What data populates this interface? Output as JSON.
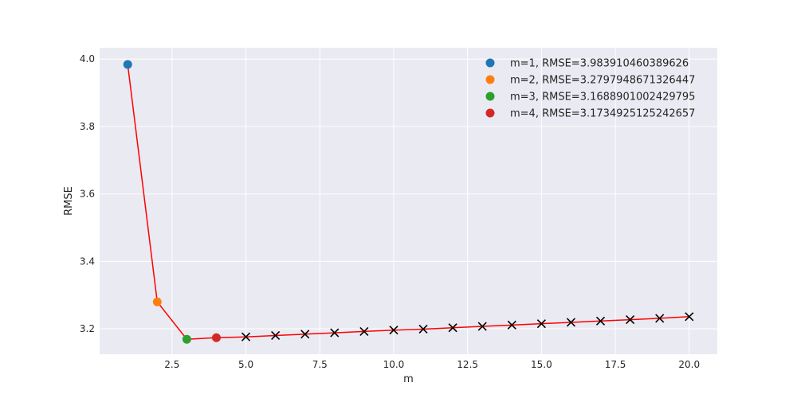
{
  "chart_data": {
    "type": "line",
    "title": "",
    "xlabel": "m",
    "ylabel": "RMSE",
    "xlim": [
      0.05,
      20.95
    ],
    "ylim": [
      3.1245,
      4.0335
    ],
    "xticks": [
      2.5,
      5.0,
      7.5,
      10.0,
      12.5,
      15.0,
      17.5,
      20.0
    ],
    "xtick_labels": [
      "2.5",
      "5.0",
      "7.5",
      "10.0",
      "12.5",
      "15.0",
      "17.5",
      "20.0"
    ],
    "yticks": [
      3.2,
      3.4,
      3.6,
      3.8,
      4.0
    ],
    "ytick_labels": [
      "3.2",
      "3.4",
      "3.6",
      "3.8",
      "4.0"
    ],
    "grid": true,
    "legend_position": "top-right",
    "line": {
      "color": "#ff0000",
      "x": [
        1,
        2,
        3,
        4,
        5,
        6,
        7,
        8,
        9,
        10,
        11,
        12,
        13,
        14,
        15,
        16,
        17,
        18,
        19,
        20
      ],
      "y": [
        3.98391,
        3.27979,
        3.16889,
        3.17349,
        3.176,
        3.18,
        3.184,
        3.188,
        3.192,
        3.196,
        3.199,
        3.203,
        3.207,
        3.211,
        3.215,
        3.219,
        3.223,
        3.227,
        3.231,
        3.236
      ]
    },
    "highlighted_points": [
      {
        "name": "m=1, RMSE=3.983910460389626",
        "x": 1,
        "y": 3.983910460389626,
        "color": "#1f77b4"
      },
      {
        "name": "m=2, RMSE=3.2797948671326447",
        "x": 2,
        "y": 3.2797948671326447,
        "color": "#ff7f0e"
      },
      {
        "name": "m=3, RMSE=3.1688901002429795",
        "x": 3,
        "y": 3.1688901002429795,
        "color": "#2ca02c"
      },
      {
        "name": "m=4, RMSE=3.1734925125242657",
        "x": 4,
        "y": 3.1734925125242657,
        "color": "#d62728"
      }
    ],
    "cross_markers": {
      "color": "#000000",
      "x": [
        5,
        6,
        7,
        8,
        9,
        10,
        11,
        12,
        13,
        14,
        15,
        16,
        17,
        18,
        19,
        20
      ],
      "y": [
        3.176,
        3.18,
        3.184,
        3.188,
        3.192,
        3.196,
        3.199,
        3.203,
        3.207,
        3.211,
        3.215,
        3.219,
        3.223,
        3.227,
        3.231,
        3.236
      ]
    },
    "colors": {
      "background": "#eaeaf2",
      "grid": "#ffffff"
    }
  }
}
